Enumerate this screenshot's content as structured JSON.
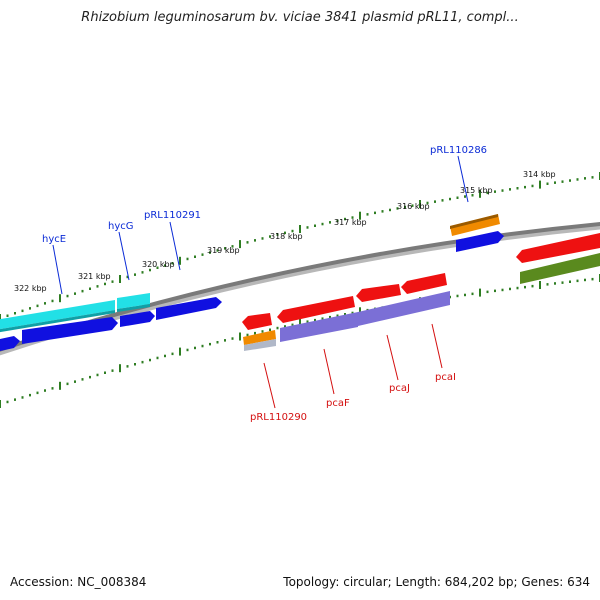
{
  "title": "Rhizobium leguminosarum bv. viciae 3841 plasmid pRL11, compl...",
  "footer": {
    "accession": "Accession: NC_008384",
    "summary": "Topology: circular; Length: 684,202 bp; Genes: 634"
  },
  "ruler": {
    "labels": [
      "314 kbp",
      "315 kbp",
      "316 kbp",
      "317 kbp",
      "318 kbp",
      "319 kbp",
      "320 kbp",
      "321 kbp",
      "322 kbp"
    ],
    "tick_color": "#2e7d22"
  },
  "genes": {
    "top": [
      {
        "name": "pRL110286",
        "color": "#0b2bd6"
      },
      {
        "name": "pRL110291",
        "color": "#0b2bd6"
      },
      {
        "name": "hycG",
        "color": "#0b2bd6"
      },
      {
        "name": "hycE",
        "color": "#0b2bd6"
      }
    ],
    "bottom": [
      {
        "name": "pRL110290",
        "color": "#d41010"
      },
      {
        "name": "pcaF",
        "color": "#d41010"
      },
      {
        "name": "pcaJ",
        "color": "#d41010"
      },
      {
        "name": "pcaI",
        "color": "#d41010"
      }
    ]
  },
  "colors": {
    "backbone": "#7a7a7a",
    "cyan": "#22e0e6",
    "blue": "#1010e0",
    "red": "#ee1111",
    "orange": "#f08a00",
    "purple": "#7b6fd6",
    "olive": "#5a8a1e",
    "gray": "#b0b8c8"
  }
}
